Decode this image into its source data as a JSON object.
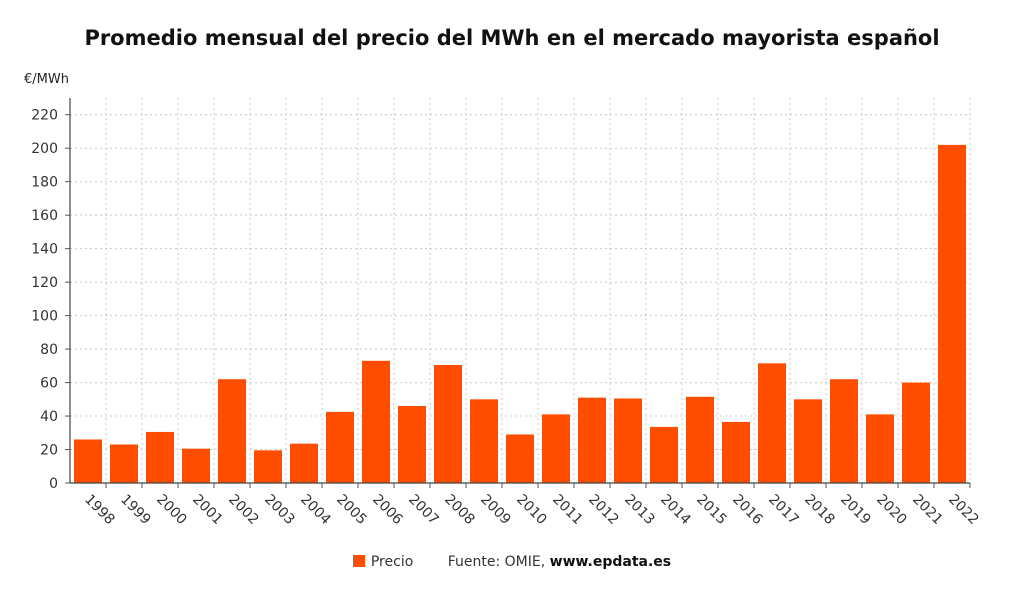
{
  "chart_data": {
    "type": "bar",
    "title": "Promedio mensual del precio del MWh en el mercado mayorista español",
    "ylabel": "€/MWh",
    "xlabel": "",
    "ylim": [
      0,
      230
    ],
    "yticks": [
      0,
      20,
      40,
      60,
      80,
      100,
      120,
      140,
      160,
      180,
      200,
      220
    ],
    "grid": true,
    "legend_position": "bottom",
    "categories": [
      "1998",
      "1999",
      "2000",
      "2001",
      "2002",
      "2003",
      "2004",
      "2005",
      "2006",
      "2007",
      "2008",
      "2009",
      "2010",
      "2011",
      "2012",
      "2013",
      "2014",
      "2015",
      "2016",
      "2017",
      "2018",
      "2019",
      "2020",
      "2021",
      "2022"
    ],
    "series": [
      {
        "name": "Precio",
        "color": "#ff4d00",
        "values": [
          26,
          23,
          30.5,
          20.5,
          62,
          19.5,
          23.5,
          42.5,
          73,
          46,
          70.5,
          50,
          29,
          41,
          51,
          50.5,
          33.5,
          51.5,
          36.5,
          71.5,
          50,
          62,
          41,
          60,
          202
        ]
      }
    ]
  },
  "legend": {
    "series_label": "Precio",
    "source_prefix": "Fuente: OMIE,",
    "source_site": "www.epdata.es"
  }
}
